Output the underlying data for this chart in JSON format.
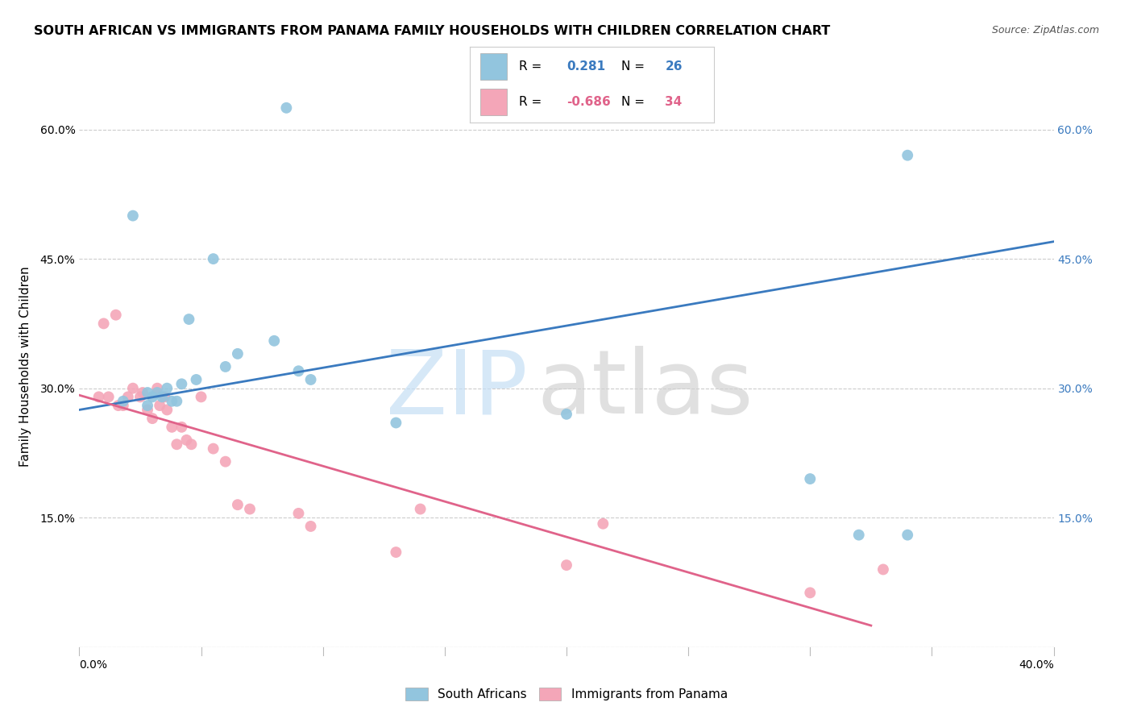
{
  "title": "SOUTH AFRICAN VS IMMIGRANTS FROM PANAMA FAMILY HOUSEHOLDS WITH CHILDREN CORRELATION CHART",
  "source": "Source: ZipAtlas.com",
  "ylabel": "Family Households with Children",
  "xlim": [
    0.0,
    0.4
  ],
  "ylim": [
    0.0,
    0.65
  ],
  "blue_R": 0.281,
  "blue_N": 26,
  "pink_R": -0.686,
  "pink_N": 34,
  "blue_scatter_x": [
    0.018,
    0.022,
    0.028,
    0.028,
    0.03,
    0.032,
    0.034,
    0.036,
    0.038,
    0.04,
    0.042,
    0.045,
    0.048,
    0.055,
    0.06,
    0.065,
    0.08,
    0.085,
    0.09,
    0.095,
    0.13,
    0.2,
    0.3,
    0.32,
    0.34,
    0.34
  ],
  "blue_scatter_y": [
    0.285,
    0.5,
    0.295,
    0.28,
    0.29,
    0.295,
    0.29,
    0.3,
    0.285,
    0.285,
    0.305,
    0.38,
    0.31,
    0.45,
    0.325,
    0.34,
    0.355,
    0.625,
    0.32,
    0.31,
    0.26,
    0.27,
    0.195,
    0.13,
    0.13,
    0.57
  ],
  "pink_scatter_x": [
    0.008,
    0.01,
    0.012,
    0.015,
    0.016,
    0.018,
    0.02,
    0.022,
    0.025,
    0.026,
    0.028,
    0.03,
    0.032,
    0.033,
    0.035,
    0.036,
    0.038,
    0.04,
    0.042,
    0.044,
    0.046,
    0.05,
    0.055,
    0.06,
    0.065,
    0.07,
    0.09,
    0.095,
    0.13,
    0.14,
    0.2,
    0.215,
    0.3,
    0.33
  ],
  "pink_scatter_y": [
    0.29,
    0.375,
    0.29,
    0.385,
    0.28,
    0.28,
    0.29,
    0.3,
    0.29,
    0.295,
    0.275,
    0.265,
    0.3,
    0.28,
    0.29,
    0.275,
    0.255,
    0.235,
    0.255,
    0.24,
    0.235,
    0.29,
    0.23,
    0.215,
    0.165,
    0.16,
    0.155,
    0.14,
    0.11,
    0.16,
    0.095,
    0.143,
    0.063,
    0.09
  ],
  "blue_line_x": [
    0.0,
    0.4
  ],
  "blue_line_y": [
    0.275,
    0.47
  ],
  "pink_line_x": [
    0.0,
    0.325
  ],
  "pink_line_y": [
    0.292,
    0.025
  ],
  "blue_dot_color": "#92c5de",
  "pink_dot_color": "#f4a6b8",
  "blue_line_color": "#3a7abf",
  "pink_line_color": "#e0638a",
  "legend_blue_label": "South Africans",
  "legend_pink_label": "Immigrants from Panama",
  "grid_color": "#cccccc",
  "background_color": "#ffffff",
  "watermark_zip_color": "#c5dff5",
  "watermark_atlas_color": "#d0d0d0"
}
